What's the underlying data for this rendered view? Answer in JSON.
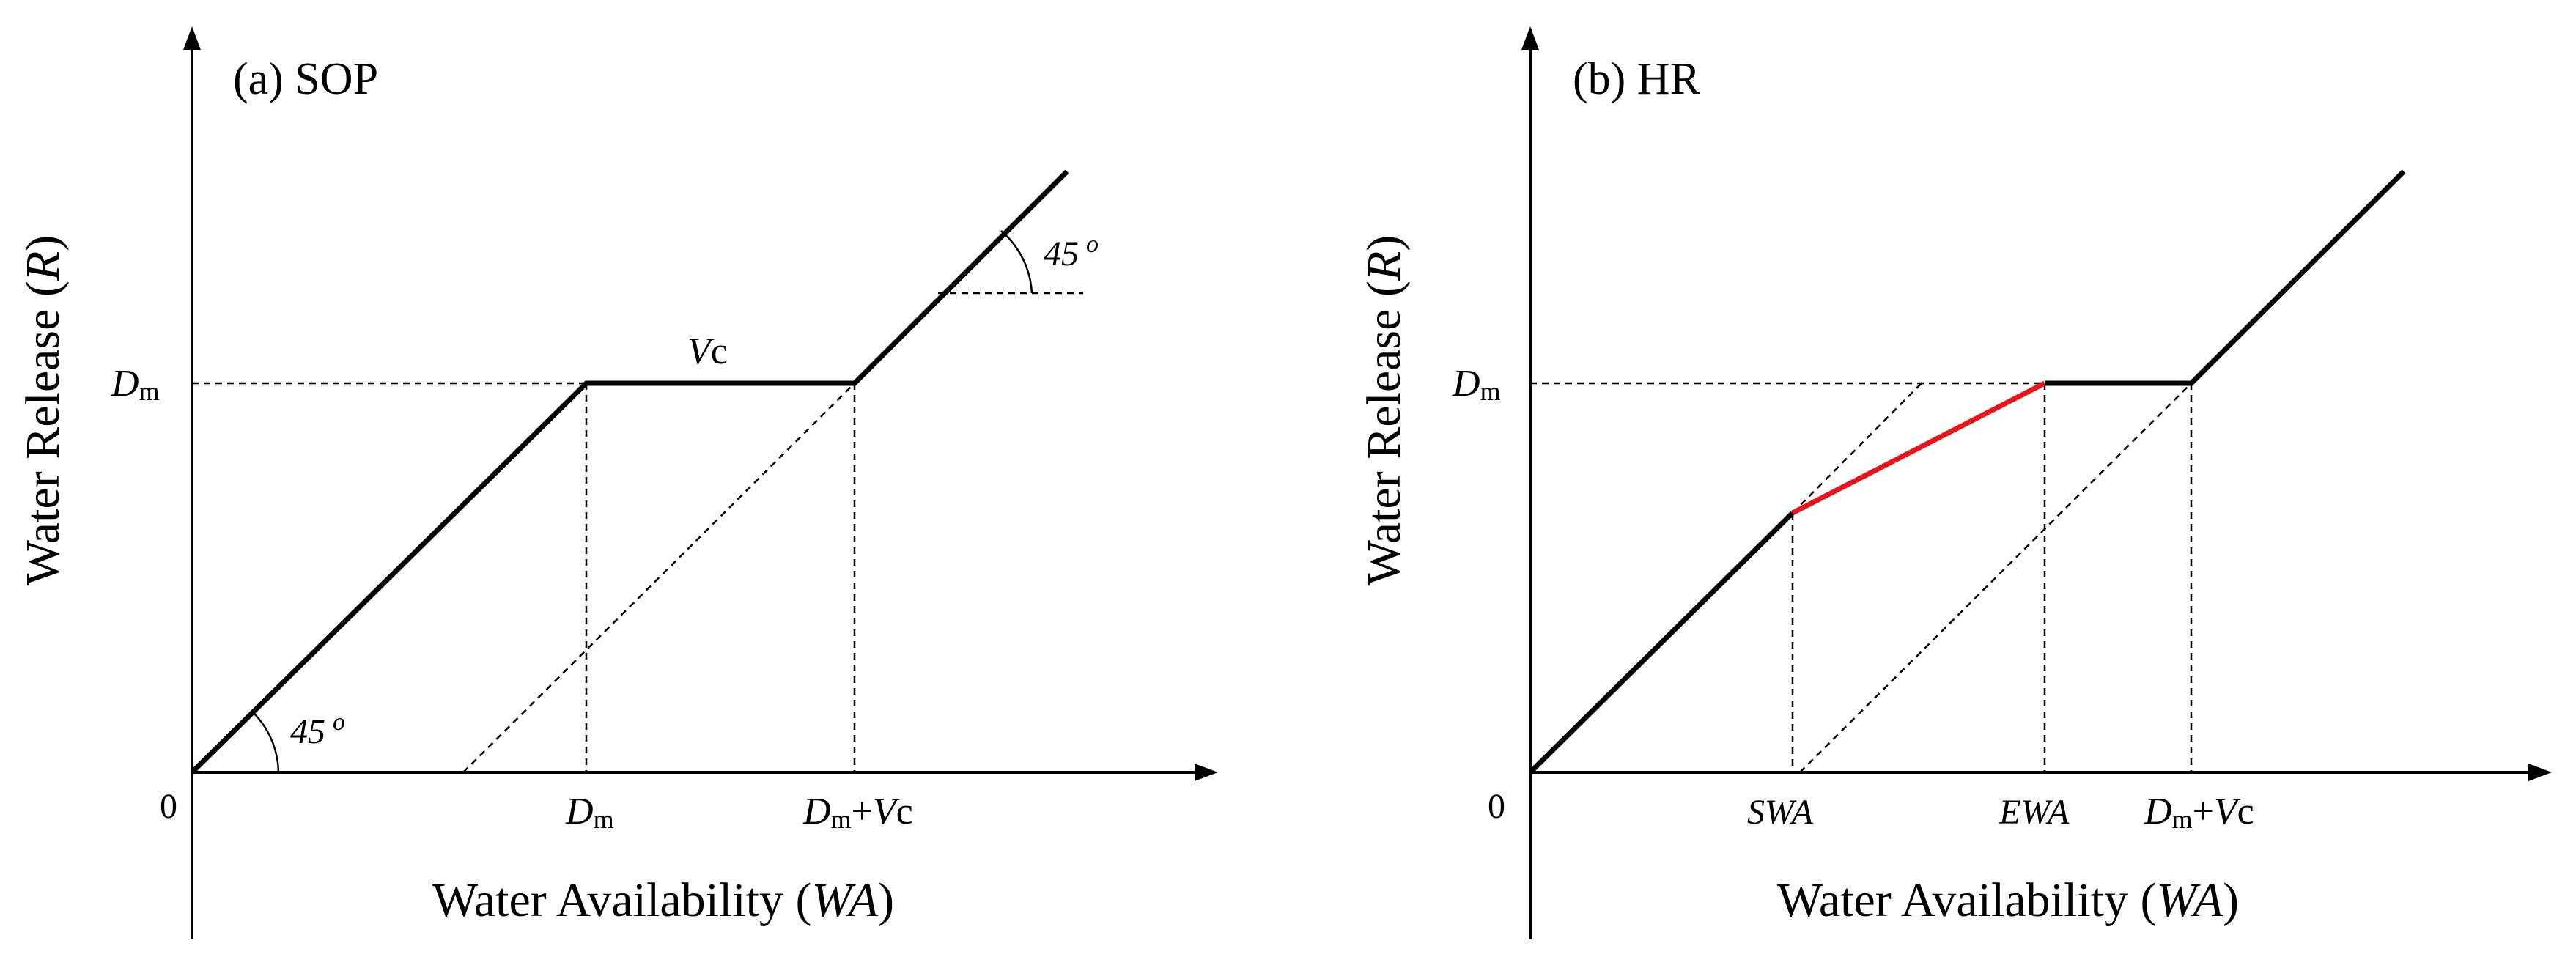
{
  "panel_a": {
    "title": "(a) SOP",
    "y_axis_label": "Water Release",
    "y_axis_symbol": "R",
    "x_axis_label": "Water Availability",
    "x_axis_symbol": "WA",
    "origin_label": "0",
    "dm_main": "D",
    "dm_sub": "m",
    "vc_main": "V",
    "vc_sub": "c",
    "dmvc_plus": "+",
    "angle_bottom": "45",
    "angle_top": "45",
    "degree_symbol": "o"
  },
  "panel_b": {
    "title": "(b) HR",
    "y_axis_label": "Water Release",
    "y_axis_symbol": "R",
    "x_axis_label": "Water Availability",
    "x_axis_symbol": "WA",
    "origin_label": "0",
    "dm_main": "D",
    "dm_sub": "m",
    "vc_main": "V",
    "vc_sub": "c",
    "dmvc_plus": "+",
    "swa_label": "SWA",
    "ewa_label": "EWA"
  },
  "colors": {
    "curve": "#000000",
    "hedging_segment": "#e8141b",
    "background": "#ffffff"
  }
}
